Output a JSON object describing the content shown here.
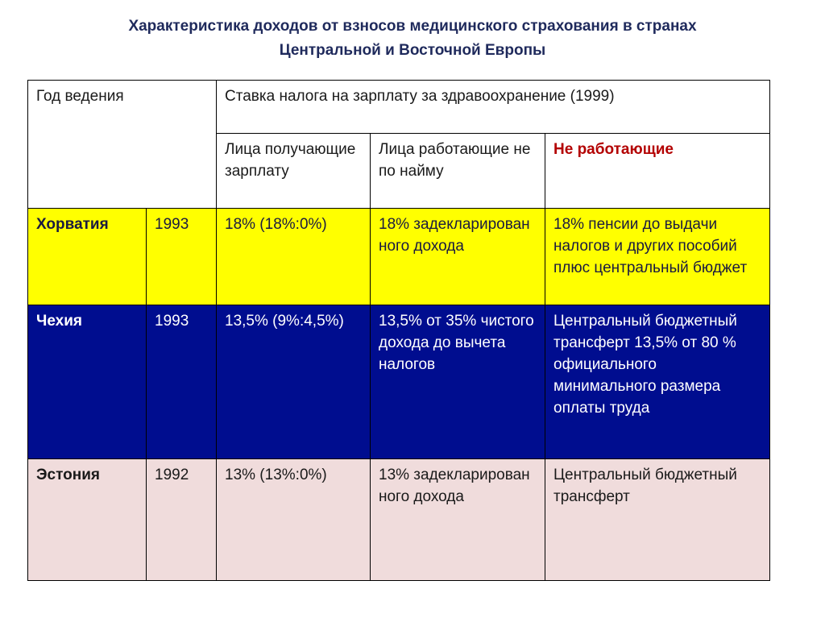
{
  "title": {
    "line1": "Характеристика доходов от взносов медицинского страхования в странах",
    "line2": "Центральной и Восточной Европы"
  },
  "header": {
    "year_col": "Год ведения",
    "rate_group": "Ставка налога на зарплату за здравоохранение (1999)",
    "col_employed": "Лица получающие зарплату",
    "col_self_employed": "Лица работающие не по найму",
    "col_non_working": "Не работающие"
  },
  "colors": {
    "title": "#1f2a5c",
    "accent": "#b30000",
    "row_croatia": "#ffff00",
    "row_czech": "#000d8f",
    "row_estonia": "#f0dcdc"
  },
  "rows": [
    {
      "country": "Хорватия",
      "year": "1993",
      "employed": "18% (18%:0%)",
      "self_employed": "18% задекларирован ного дохода",
      "non_working": "18% пенсии до выдачи налогов и других пособий плюс центральный бюджет"
    },
    {
      "country": "Чехия",
      "year": "1993",
      "employed": "13,5% (9%:4,5%)",
      "self_employed": "13,5% от 35% чистого дохода до вычета налогов",
      "non_working": "Центральный бюджетный трансферт 13,5% от 80 % официального минимального размера оплаты труда"
    },
    {
      "country": "Эстония",
      "year": "1992",
      "employed": "13% (13%:0%)",
      "self_employed": "13% задекларирован ного дохода",
      "non_working": "Центральный бюджетный трансферт"
    }
  ]
}
